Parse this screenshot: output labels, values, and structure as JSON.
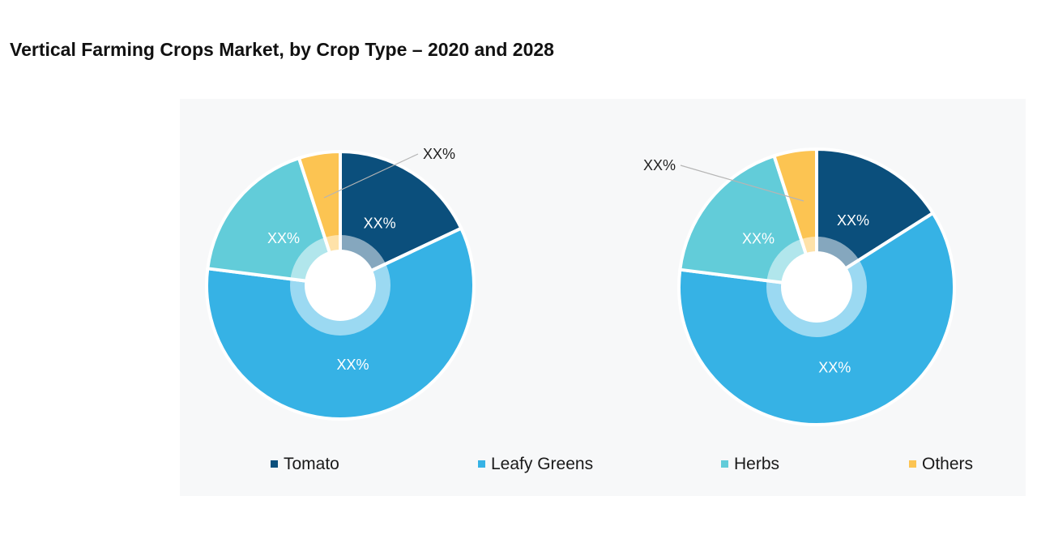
{
  "title": "Vertical Farming Crops Market, by Crop Type – 2020 and 2028",
  "chart_data": {
    "type": "pie",
    "title": "Vertical Farming Crops Market, by Crop Type – 2020 and 2028",
    "categories": [
      "Tomato",
      "Leafy Greens",
      "Herbs",
      "Others"
    ],
    "colors": [
      "#0b4f7c",
      "#36b2e5",
      "#62ccd9",
      "#fcc452"
    ],
    "inner_ring_color": "#a8dcf3",
    "charts": [
      {
        "name": "2020",
        "values": [
          18,
          59,
          18,
          5
        ],
        "labels": [
          "XX%",
          "XX%",
          "XX%",
          "XX%"
        ]
      },
      {
        "name": "2028",
        "values": [
          16,
          61,
          18,
          5
        ],
        "labels": [
          "XX%",
          "XX%",
          "XX%",
          "XX%"
        ]
      }
    ],
    "legend": [
      "Tomato",
      "Leafy Greens",
      "Herbs",
      "Others"
    ],
    "legend_position": "bottom"
  }
}
